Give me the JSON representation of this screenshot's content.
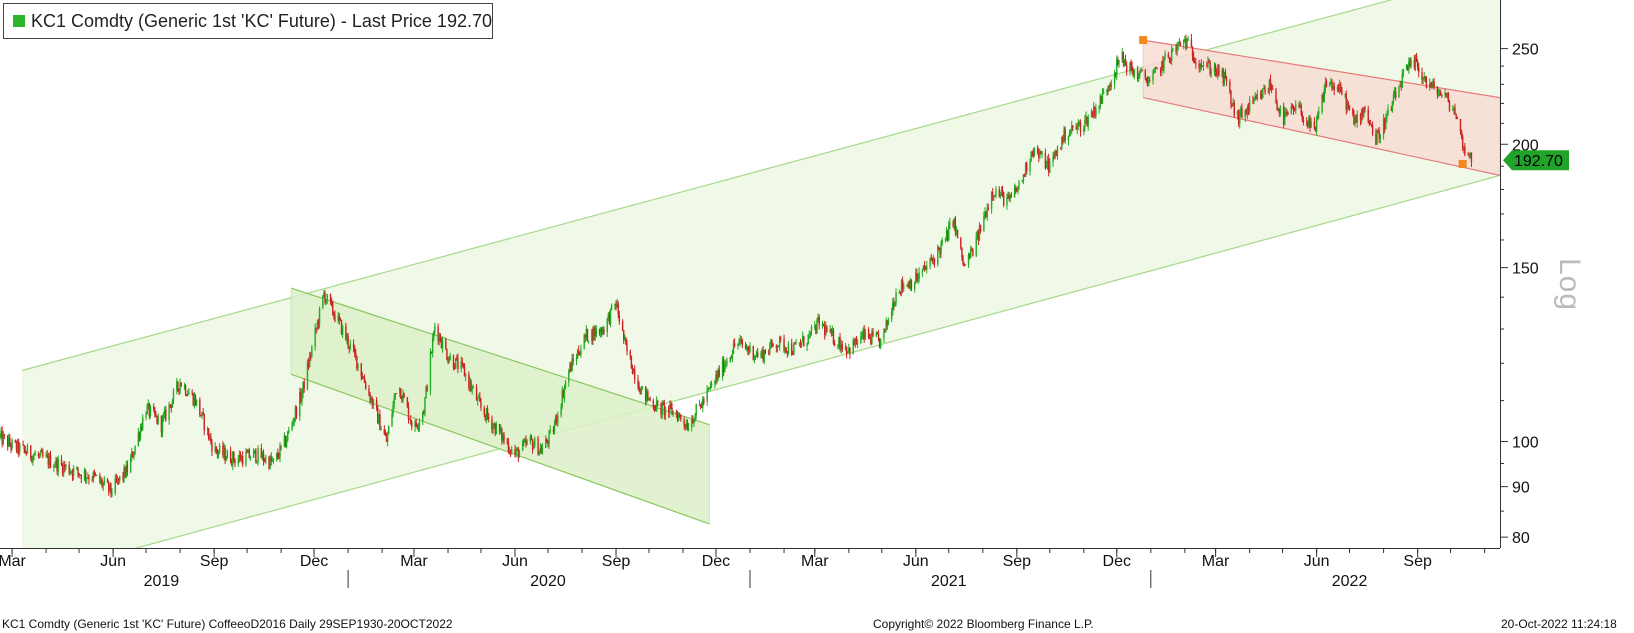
{
  "legend": {
    "text": "KC1 Comdty (Generic 1st 'KC' Future) - Last Price 192.70",
    "swatch_color": "#2bb52b"
  },
  "last_price_label": "192.70",
  "scale_label": "Log",
  "footer": {
    "left": "KC1 Comdty (Generic 1st 'KC' Future) CoffeeoD2016  Daily 29SEP1930-20OCT2022",
    "center": "Copyright© 2022 Bloomberg Finance L.P.",
    "right": "20-Oct-2022 11:24:18"
  },
  "chart_data": {
    "type": "line",
    "title": "KC1 Comdty (Generic 1st 'KC' Future) - Last Price 192.70",
    "style": "candlestick",
    "y_scale": "log",
    "ylim": [
      78,
      280
    ],
    "y_ticks": [
      80,
      90,
      100,
      150,
      200,
      250
    ],
    "x_range": [
      "2019-02-18",
      "2022-11-15"
    ],
    "x_month_ticks": [
      {
        "label": "Mar",
        "date": "2019-03-01"
      },
      {
        "label": "Jun",
        "date": "2019-06-01"
      },
      {
        "label": "Sep",
        "date": "2019-09-01"
      },
      {
        "label": "Dec",
        "date": "2019-12-01"
      },
      {
        "label": "Mar",
        "date": "2020-03-01"
      },
      {
        "label": "Jun",
        "date": "2020-06-01"
      },
      {
        "label": "Sep",
        "date": "2020-09-01"
      },
      {
        "label": "Dec",
        "date": "2020-12-01"
      },
      {
        "label": "Mar",
        "date": "2021-03-01"
      },
      {
        "label": "Jun",
        "date": "2021-06-01"
      },
      {
        "label": "Sep",
        "date": "2021-09-01"
      },
      {
        "label": "Dec",
        "date": "2021-12-01"
      },
      {
        "label": "Mar",
        "date": "2022-03-01"
      },
      {
        "label": "Jun",
        "date": "2022-06-01"
      },
      {
        "label": "Sep",
        "date": "2022-09-01"
      }
    ],
    "x_year_labels": [
      {
        "label": "2019",
        "date": "2019-07-15"
      },
      {
        "label": "2020",
        "date": "2020-07-01"
      },
      {
        "label": "2021",
        "date": "2021-07-01"
      },
      {
        "label": "2022",
        "date": "2022-07-01"
      }
    ],
    "x_year_separators": [
      "2020-01-01",
      "2021-01-01",
      "2022-01-01"
    ],
    "series": [
      {
        "color_up": "#22aa22",
        "color_down": "#cc2222",
        "x": [
          "2019-02-18",
          "2019-03-01",
          "2019-03-20",
          "2019-04-10",
          "2019-04-30",
          "2019-05-15",
          "2019-05-30",
          "2019-06-15",
          "2019-07-01",
          "2019-07-15",
          "2019-08-01",
          "2019-08-15",
          "2019-09-01",
          "2019-09-20",
          "2019-10-10",
          "2019-10-25",
          "2019-11-05",
          "2019-11-20",
          "2019-12-01",
          "2019-12-10",
          "2019-12-25",
          "2020-01-10",
          "2020-01-25",
          "2020-02-05",
          "2020-02-15",
          "2020-03-01",
          "2020-03-10",
          "2020-03-20",
          "2020-04-01",
          "2020-04-15",
          "2020-05-01",
          "2020-05-15",
          "2020-06-01",
          "2020-06-15",
          "2020-06-25",
          "2020-07-05",
          "2020-07-20",
          "2020-08-05",
          "2020-08-20",
          "2020-09-01",
          "2020-09-10",
          "2020-09-25",
          "2020-10-10",
          "2020-10-25",
          "2020-11-05",
          "2020-11-20",
          "2020-12-05",
          "2020-12-20",
          "2021-01-10",
          "2021-01-25",
          "2021-02-10",
          "2021-02-25",
          "2021-03-05",
          "2021-03-15",
          "2021-04-01",
          "2021-04-15",
          "2021-05-01",
          "2021-05-15",
          "2021-06-01",
          "2021-06-15",
          "2021-06-28",
          "2021-07-05",
          "2021-07-15",
          "2021-07-25",
          "2021-08-10",
          "2021-08-25",
          "2021-09-05",
          "2021-09-15",
          "2021-10-01",
          "2021-10-15",
          "2021-11-01",
          "2021-11-15",
          "2021-11-25",
          "2021-12-05",
          "2021-12-15",
          "2022-01-01",
          "2022-01-15",
          "2022-02-01",
          "2022-02-10",
          "2022-02-20",
          "2022-03-01",
          "2022-03-10",
          "2022-03-20",
          "2022-04-05",
          "2022-04-20",
          "2022-05-01",
          "2022-05-15",
          "2022-05-30",
          "2022-06-10",
          "2022-06-25",
          "2022-07-05",
          "2022-07-15",
          "2022-07-25",
          "2022-08-05",
          "2022-08-20",
          "2022-08-30",
          "2022-09-10",
          "2022-09-25",
          "2022-10-05",
          "2022-10-12",
          "2022-10-20"
        ],
        "y": [
          101,
          99,
          97,
          95,
          93,
          92,
          89,
          94,
          108,
          104,
          115,
          110,
          98,
          96,
          97,
          95,
          100,
          112,
          127,
          141,
          131,
          120,
          108,
          100,
          115,
          103,
          108,
          131,
          122,
          118,
          108,
          103,
          97,
          100,
          98,
          102,
          118,
          128,
          130,
          138,
          124,
          112,
          108,
          107,
          104,
          110,
          118,
          126,
          122,
          126,
          124,
          128,
          132,
          128,
          124,
          128,
          126,
          143,
          146,
          152,
          160,
          168,
          150,
          158,
          180,
          175,
          183,
          198,
          190,
          205,
          210,
          220,
          232,
          245,
          237,
          232,
          244,
          255,
          245,
          240,
          238,
          232,
          212,
          220,
          230,
          212,
          218,
          205,
          232,
          225,
          210,
          218,
          202,
          214,
          236,
          242,
          230,
          224,
          216,
          200,
          192.7
        ]
      }
    ]
  },
  "channels": [
    {
      "name": "long-term-up-channel",
      "fill": "#edf7e3",
      "stroke": "#a7d88a",
      "upper": [
        [
          "2019-03-10",
          118
        ],
        [
          "2022-11-15",
          300
        ]
      ],
      "lower": [
        [
          "2019-03-10",
          72.5
        ],
        [
          "2022-11-15",
          186
        ]
      ],
      "band": [
        "2019-03-10",
        "2022-11-15"
      ]
    },
    {
      "name": "2020-down-channel",
      "fill": "#ddf0c8",
      "stroke": "#88c860",
      "upper": [
        [
          "2019-11-10",
          143
        ],
        [
          "2020-11-25",
          104
        ]
      ],
      "lower": [
        [
          "2019-11-10",
          117
        ],
        [
          "2020-11-25",
          82.5
        ]
      ],
      "band": [
        "2019-11-10",
        "2020-11-25"
      ]
    },
    {
      "name": "2022-down-channel",
      "fill": "#f7ddd3",
      "stroke": "#e77a7a",
      "upper": [
        [
          "2021-12-25",
          255
        ],
        [
          "2022-11-15",
          223
        ]
      ],
      "lower": [
        [
          "2021-12-25",
          223
        ],
        [
          "2022-11-15",
          186
        ]
      ],
      "band": [
        "2021-12-25",
        "2022-11-15"
      ],
      "handles": [
        [
          "2021-12-25",
          255
        ],
        [
          "2022-10-12",
          191
        ]
      ]
    }
  ]
}
